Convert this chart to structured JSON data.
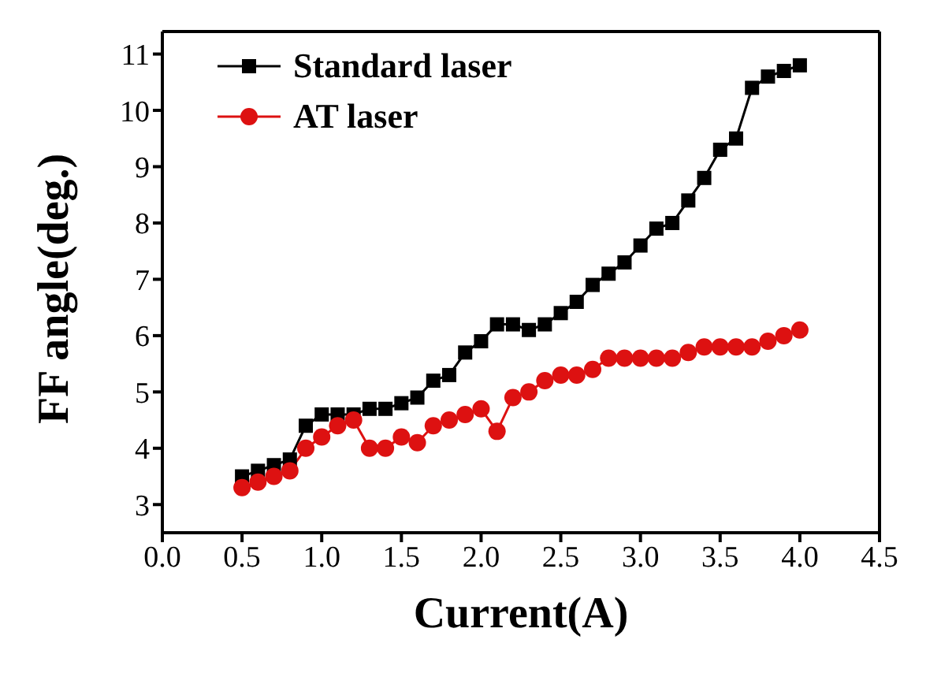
{
  "chart_data": {
    "type": "line",
    "xlabel": "Current(A)",
    "ylabel": "FF angle(deg.)",
    "x": [
      0.5,
      0.6,
      0.7,
      0.8,
      0.9,
      1.0,
      1.1,
      1.2,
      1.3,
      1.4,
      1.5,
      1.6,
      1.7,
      1.8,
      1.9,
      2.0,
      2.1,
      2.2,
      2.3,
      2.4,
      2.5,
      2.6,
      2.7,
      2.8,
      2.9,
      3.0,
      3.1,
      3.2,
      3.3,
      3.4,
      3.5,
      3.6,
      3.7,
      3.8,
      3.9,
      4.0
    ],
    "series": [
      {
        "name": "Standard laser",
        "color": "#000000",
        "marker": "square",
        "values": [
          3.5,
          3.6,
          3.7,
          3.8,
          4.4,
          4.6,
          4.6,
          4.6,
          4.7,
          4.7,
          4.8,
          4.9,
          5.2,
          5.3,
          5.7,
          5.9,
          6.2,
          6.2,
          6.1,
          6.2,
          6.4,
          6.6,
          6.9,
          7.1,
          7.3,
          7.6,
          7.9,
          8.0,
          8.4,
          8.8,
          9.3,
          9.5,
          10.4,
          10.6,
          10.7,
          10.8
        ]
      },
      {
        "name": "AT laser",
        "color": "#dd1111",
        "marker": "circle",
        "values": [
          3.3,
          3.4,
          3.5,
          3.6,
          4.0,
          4.2,
          4.4,
          4.5,
          4.0,
          4.0,
          4.2,
          4.1,
          4.4,
          4.5,
          4.6,
          4.7,
          4.3,
          4.9,
          5.0,
          5.2,
          5.3,
          5.3,
          5.4,
          5.6,
          5.6,
          5.6,
          5.6,
          5.6,
          5.7,
          5.8,
          5.8,
          5.8,
          5.8,
          5.9,
          6.0,
          6.1
        ]
      }
    ],
    "xlim": [
      0,
      4.5
    ],
    "xticks": [
      {
        "value": 0,
        "label": "0.0"
      },
      {
        "value": 0.5,
        "label": "0.5"
      },
      {
        "value": 1,
        "label": "1.0"
      },
      {
        "value": 1.5,
        "label": "1.5"
      },
      {
        "value": 2,
        "label": "2.0"
      },
      {
        "value": 2.5,
        "label": "2.5"
      },
      {
        "value": 3,
        "label": "3.0"
      },
      {
        "value": 3.5,
        "label": "3.5"
      },
      {
        "value": 4,
        "label": "4.0"
      },
      {
        "value": 4.5,
        "label": "4.5"
      }
    ],
    "ylim": [
      2.5,
      11.4
    ],
    "yticks": [
      3,
      4,
      5,
      6,
      7,
      8,
      9,
      10,
      11
    ],
    "legend": "top left",
    "line_style": "solid"
  }
}
